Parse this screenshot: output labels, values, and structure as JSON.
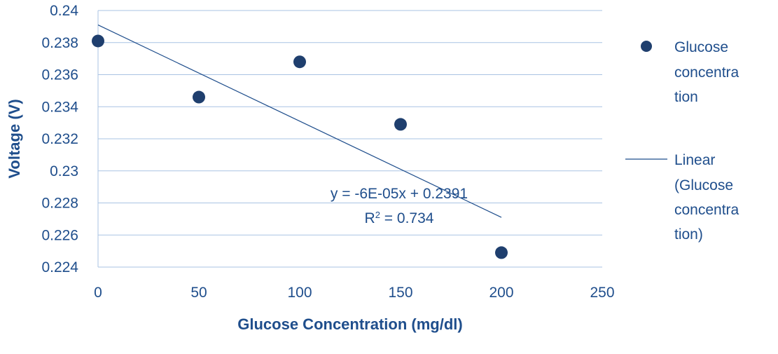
{
  "chart_data": {
    "type": "scatter",
    "xlabel": "Glucose Concentration (mg/dl)",
    "ylabel": "Voltage (V)",
    "xlim": [
      0,
      250
    ],
    "ylim": [
      0.224,
      0.24
    ],
    "x_ticks": [
      "0",
      "50",
      "100",
      "150",
      "200",
      "250"
    ],
    "y_ticks": [
      "0.224",
      "0.226",
      "0.228",
      "0.23",
      "0.232",
      "0.234",
      "0.236",
      "0.238",
      "0.24"
    ],
    "grid": "horizontal",
    "legend_position": "right",
    "series": [
      {
        "name": "Glucose concentration",
        "x": [
          0,
          50,
          100,
          150,
          200
        ],
        "y": [
          0.2381,
          0.2346,
          0.2368,
          0.2329,
          0.2249
        ],
        "color": "#1f3f6e"
      }
    ],
    "trendline": {
      "name": "Linear (Glucose concentration)",
      "slope": -6e-05,
      "intercept": 0.2391,
      "x_range": [
        0,
        200
      ],
      "equation": "y = -6E-05x + 0.2391",
      "r2_prefix": "R",
      "r2_sup": "2",
      "r2_value": " = 0.734",
      "color": "#1f4e8c"
    },
    "legend": {
      "marker_label_lines": [
        "Glucose",
        "concentra",
        "tion"
      ],
      "line_label_lines": [
        "Linear",
        "(Glucose",
        "concentra",
        "tion)"
      ]
    }
  }
}
